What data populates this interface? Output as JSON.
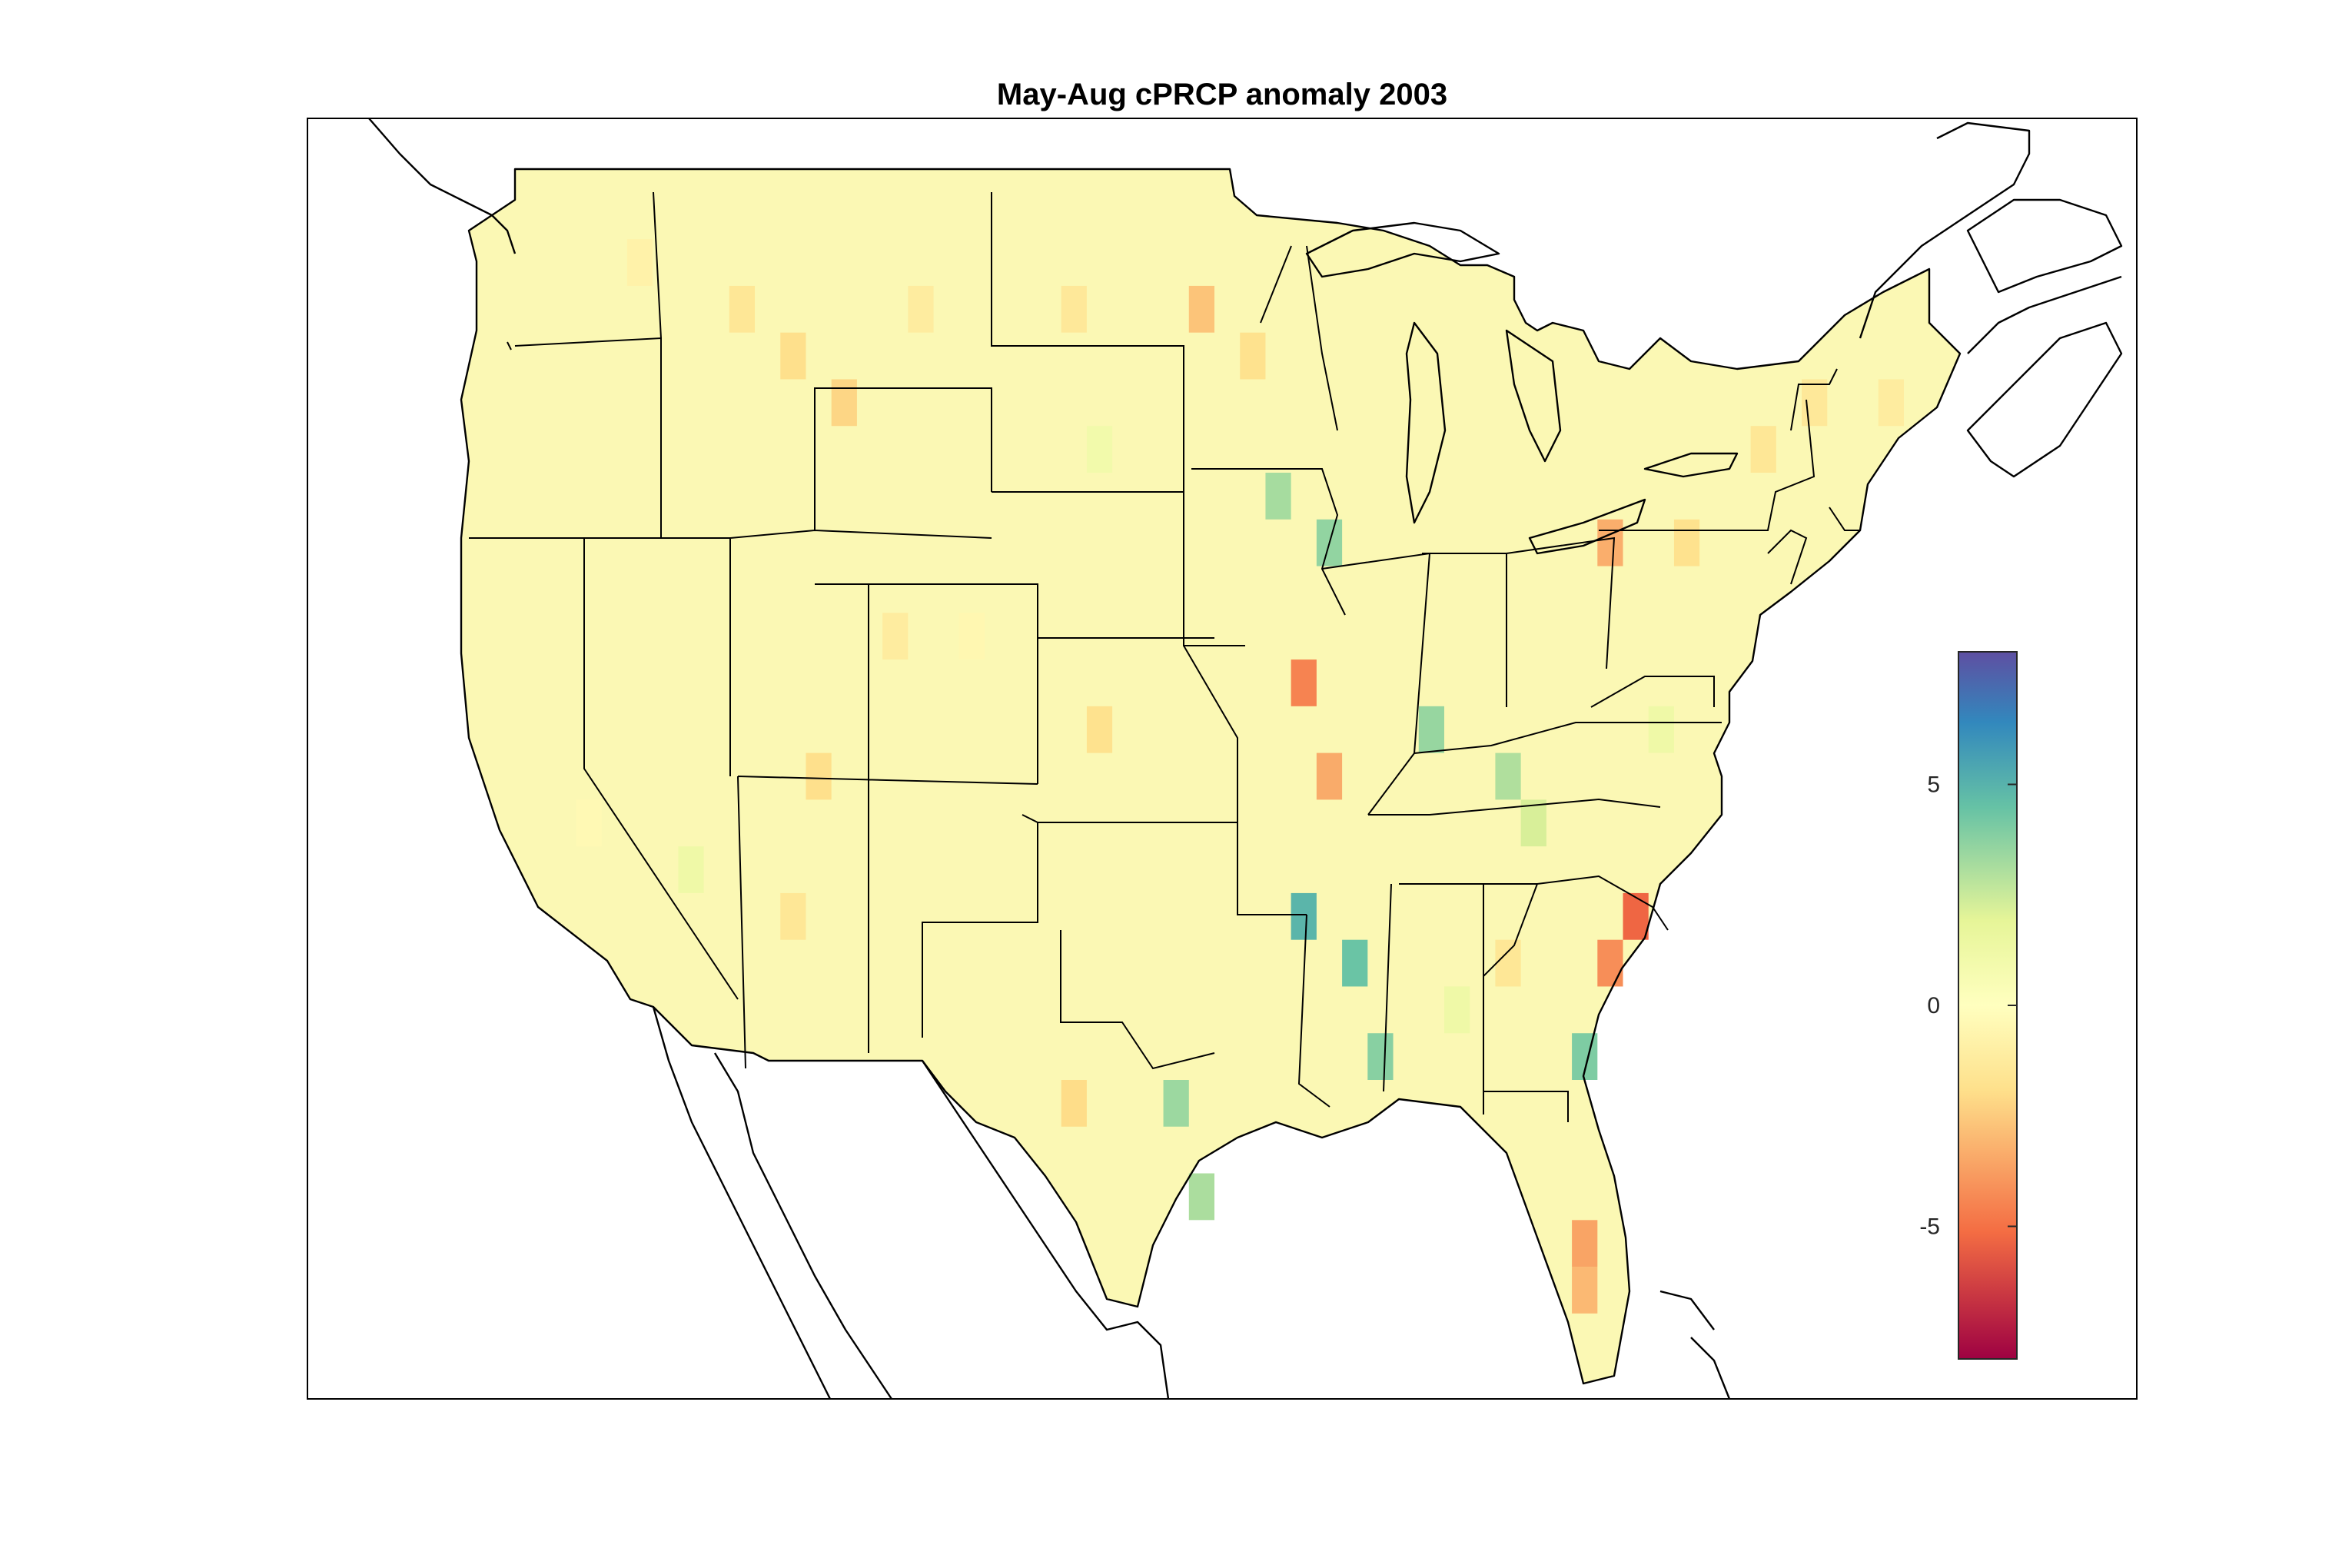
{
  "figure": {
    "title": "May-Aug cPRCP anomaly 2003"
  },
  "colorbar": {
    "colormap": "spectral",
    "range": [
      -8,
      8
    ],
    "ticks": [
      {
        "value": 5,
        "label": "5"
      },
      {
        "value": 0,
        "label": "0"
      },
      {
        "value": -5,
        "label": "-5"
      }
    ],
    "colors": {
      "min": "#9e0142",
      "low": "#f46d43",
      "mid_low": "#fee08b",
      "zero": "#ffffbf",
      "mid_high": "#e6f598",
      "high": "#66c2a5",
      "higher": "#3288bd",
      "max": "#5e4fa2"
    }
  },
  "map": {
    "region": "Contiguous United States",
    "grid_cell_degrees": 1,
    "frame_color": "#000000",
    "anomaly_grid": [
      {
        "lon": -118,
        "lat": 48,
        "value": -0.8
      },
      {
        "lon": -114,
        "lat": 47,
        "value": -1.5
      },
      {
        "lon": -112,
        "lat": 46,
        "value": -1.9
      },
      {
        "lon": -110,
        "lat": 45,
        "value": -2.2
      },
      {
        "lon": -107,
        "lat": 47,
        "value": -1.2
      },
      {
        "lon": -101,
        "lat": 47,
        "value": -1.4
      },
      {
        "lon": -96,
        "lat": 47,
        "value": -2.7
      },
      {
        "lon": -94,
        "lat": 46,
        "value": -1.8
      },
      {
        "lon": -93,
        "lat": 43,
        "value": 3.2
      },
      {
        "lon": -91,
        "lat": 42,
        "value": 3.6
      },
      {
        "lon": -92,
        "lat": 39,
        "value": -4.5
      },
      {
        "lon": -91,
        "lat": 37,
        "value": -3.4
      },
      {
        "lon": -87,
        "lat": 38,
        "value": 3.5
      },
      {
        "lon": -84,
        "lat": 37,
        "value": 3.0
      },
      {
        "lon": -92,
        "lat": 34,
        "value": 4.9
      },
      {
        "lon": -90,
        "lat": 33,
        "value": 4.4
      },
      {
        "lon": -89,
        "lat": 31,
        "value": 3.8
      },
      {
        "lon": -97,
        "lat": 30,
        "value": 3.4
      },
      {
        "lon": -96,
        "lat": 28,
        "value": 3.1
      },
      {
        "lon": -81,
        "lat": 31,
        "value": 4.0
      },
      {
        "lon": -79,
        "lat": 34,
        "value": -5.3
      },
      {
        "lon": -80,
        "lat": 33,
        "value": -4.2
      },
      {
        "lon": -81,
        "lat": 27,
        "value": -3.6
      },
      {
        "lon": -81,
        "lat": 26,
        "value": -3.0
      },
      {
        "lon": -80,
        "lat": 42,
        "value": -3.3
      },
      {
        "lon": -77,
        "lat": 42,
        "value": -1.8
      },
      {
        "lon": -74,
        "lat": 44,
        "value": -1.5
      },
      {
        "lon": -72,
        "lat": 45,
        "value": -1.4
      },
      {
        "lon": -69,
        "lat": 45,
        "value": -1.2
      },
      {
        "lon": -120,
        "lat": 36,
        "value": -0.4
      },
      {
        "lon": -116,
        "lat": 35,
        "value": 1.2
      },
      {
        "lon": -112,
        "lat": 34,
        "value": -1.5
      },
      {
        "lon": -111,
        "lat": 37,
        "value": -1.9
      },
      {
        "lon": -108,
        "lat": 40,
        "value": -1.2
      },
      {
        "lon": -105,
        "lat": 40,
        "value": -0.5
      },
      {
        "lon": -100,
        "lat": 38,
        "value": -1.8
      },
      {
        "lon": -100,
        "lat": 44,
        "value": 1.0
      },
      {
        "lon": -101,
        "lat": 30,
        "value": -2.0
      },
      {
        "lon": -86,
        "lat": 32,
        "value": 1.2
      },
      {
        "lon": -84,
        "lat": 33,
        "value": -1.5
      },
      {
        "lon": -83,
        "lat": 36,
        "value": 2.2
      },
      {
        "lon": -78,
        "lat": 38,
        "value": 1.2
      }
    ]
  }
}
